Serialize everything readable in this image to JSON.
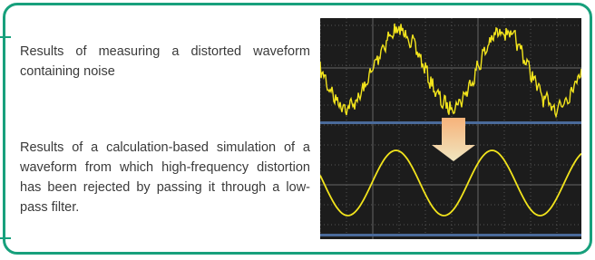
{
  "paragraphs": [
    "Results of measuring a distorted wave­form containing noise",
    "Results of a calculation-based simulation of a waveform from which high-frequency distortion has been rejected by passing it through a low-pass filter."
  ]
}
